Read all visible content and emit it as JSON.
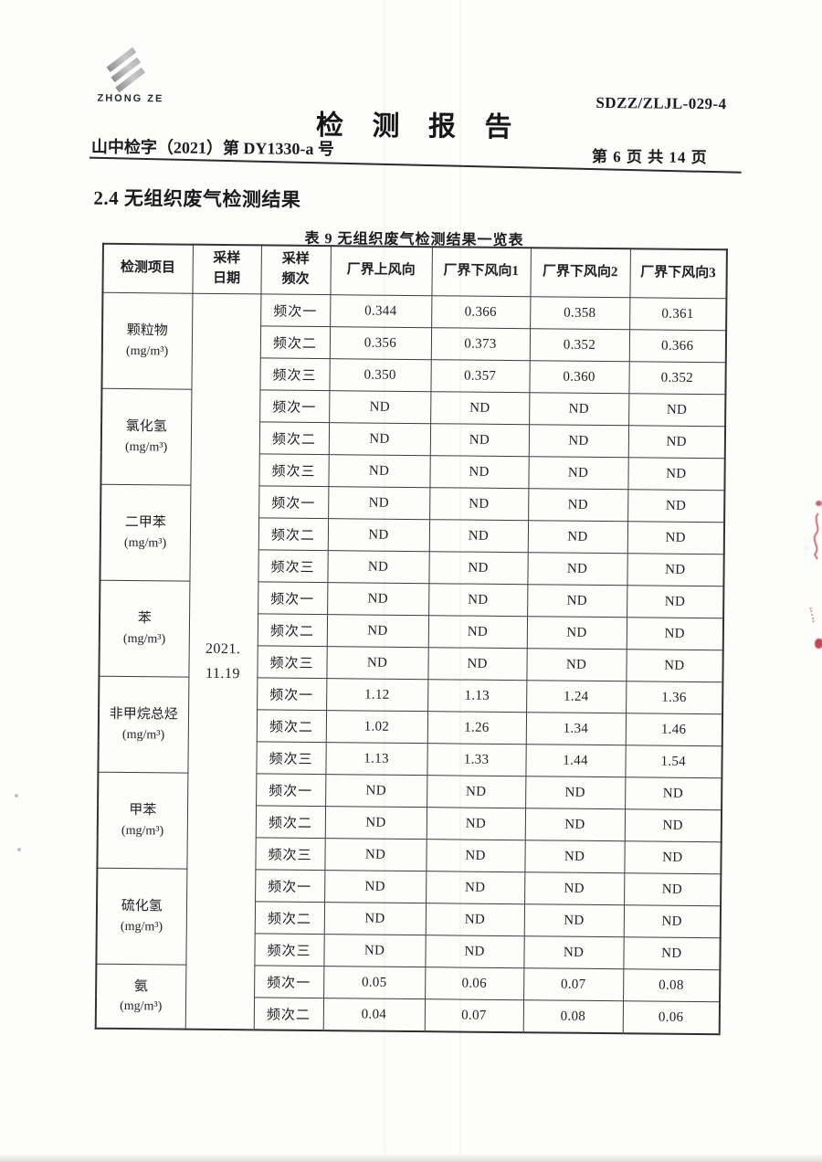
{
  "header": {
    "brand": "ZHONG ZE",
    "doc_code": "SDZZ/ZLJL-029-4",
    "title": "检 测 报 告",
    "report_no": "山中检字（2021）第 DY1330-a 号",
    "page_info": "第 6 页  共 14 页"
  },
  "section": {
    "heading": "2.4 无组织废气检测结果"
  },
  "table": {
    "caption": "表 9  无组织废气检测结果一览表",
    "columns": [
      "检测项目",
      "采样\n日期",
      "采样\n频次",
      "厂界上风向",
      "厂界下风向1",
      "厂界下风向2",
      "厂界下风向3"
    ],
    "sample_date": [
      "2021.",
      "11.19"
    ],
    "groups": [
      {
        "item": "颗粒物",
        "unit": "(mg/m³)",
        "rows": [
          {
            "freq": "频次一",
            "values": [
              "0.344",
              "0.366",
              "0.358",
              "0.361"
            ]
          },
          {
            "freq": "频次二",
            "values": [
              "0.356",
              "0.373",
              "0.352",
              "0.366"
            ]
          },
          {
            "freq": "频次三",
            "values": [
              "0.350",
              "0.357",
              "0.360",
              "0.352"
            ]
          }
        ]
      },
      {
        "item": "氯化氢",
        "unit": "(mg/m³)",
        "rows": [
          {
            "freq": "频次一",
            "values": [
              "ND",
              "ND",
              "ND",
              "ND"
            ]
          },
          {
            "freq": "频次二",
            "values": [
              "ND",
              "ND",
              "ND",
              "ND"
            ]
          },
          {
            "freq": "频次三",
            "values": [
              "ND",
              "ND",
              "ND",
              "ND"
            ]
          }
        ]
      },
      {
        "item": "二甲苯",
        "unit": "(mg/m³)",
        "rows": [
          {
            "freq": "频次一",
            "values": [
              "ND",
              "ND",
              "ND",
              "ND"
            ]
          },
          {
            "freq": "频次二",
            "values": [
              "ND",
              "ND",
              "ND",
              "ND"
            ]
          },
          {
            "freq": "频次三",
            "values": [
              "ND",
              "ND",
              "ND",
              "ND"
            ]
          }
        ]
      },
      {
        "item": "苯",
        "unit": "(mg/m³)",
        "rows": [
          {
            "freq": "频次一",
            "values": [
              "ND",
              "ND",
              "ND",
              "ND"
            ]
          },
          {
            "freq": "频次二",
            "values": [
              "ND",
              "ND",
              "ND",
              "ND"
            ]
          },
          {
            "freq": "频次三",
            "values": [
              "ND",
              "ND",
              "ND",
              "ND"
            ]
          }
        ]
      },
      {
        "item": "非甲烷总烃",
        "unit": "(mg/m³)",
        "rows": [
          {
            "freq": "频次一",
            "values": [
              "1.12",
              "1.13",
              "1.24",
              "1.36"
            ]
          },
          {
            "freq": "频次二",
            "values": [
              "1.02",
              "1.26",
              "1.34",
              "1.46"
            ]
          },
          {
            "freq": "频次三",
            "values": [
              "1.13",
              "1.33",
              "1.44",
              "1.54"
            ]
          }
        ]
      },
      {
        "item": "甲苯",
        "unit": "(mg/m³)",
        "rows": [
          {
            "freq": "频次一",
            "values": [
              "ND",
              "ND",
              "ND",
              "ND"
            ]
          },
          {
            "freq": "频次二",
            "values": [
              "ND",
              "ND",
              "ND",
              "ND"
            ]
          },
          {
            "freq": "频次三",
            "values": [
              "ND",
              "ND",
              "ND",
              "ND"
            ]
          }
        ]
      },
      {
        "item": "硫化氢",
        "unit": "(mg/m³)",
        "rows": [
          {
            "freq": "频次一",
            "values": [
              "ND",
              "ND",
              "ND",
              "ND"
            ]
          },
          {
            "freq": "频次二",
            "values": [
              "ND",
              "ND",
              "ND",
              "ND"
            ]
          },
          {
            "freq": "频次三",
            "values": [
              "ND",
              "ND",
              "ND",
              "ND"
            ]
          }
        ]
      },
      {
        "item": "氨",
        "unit": "(mg/m³)",
        "rows": [
          {
            "freq": "频次一",
            "values": [
              "0.05",
              "0.06",
              "0.07",
              "0.08"
            ]
          },
          {
            "freq": "频次二",
            "values": [
              "0.04",
              "0.07",
              "0.08",
              "0.06"
            ]
          }
        ]
      }
    ]
  }
}
